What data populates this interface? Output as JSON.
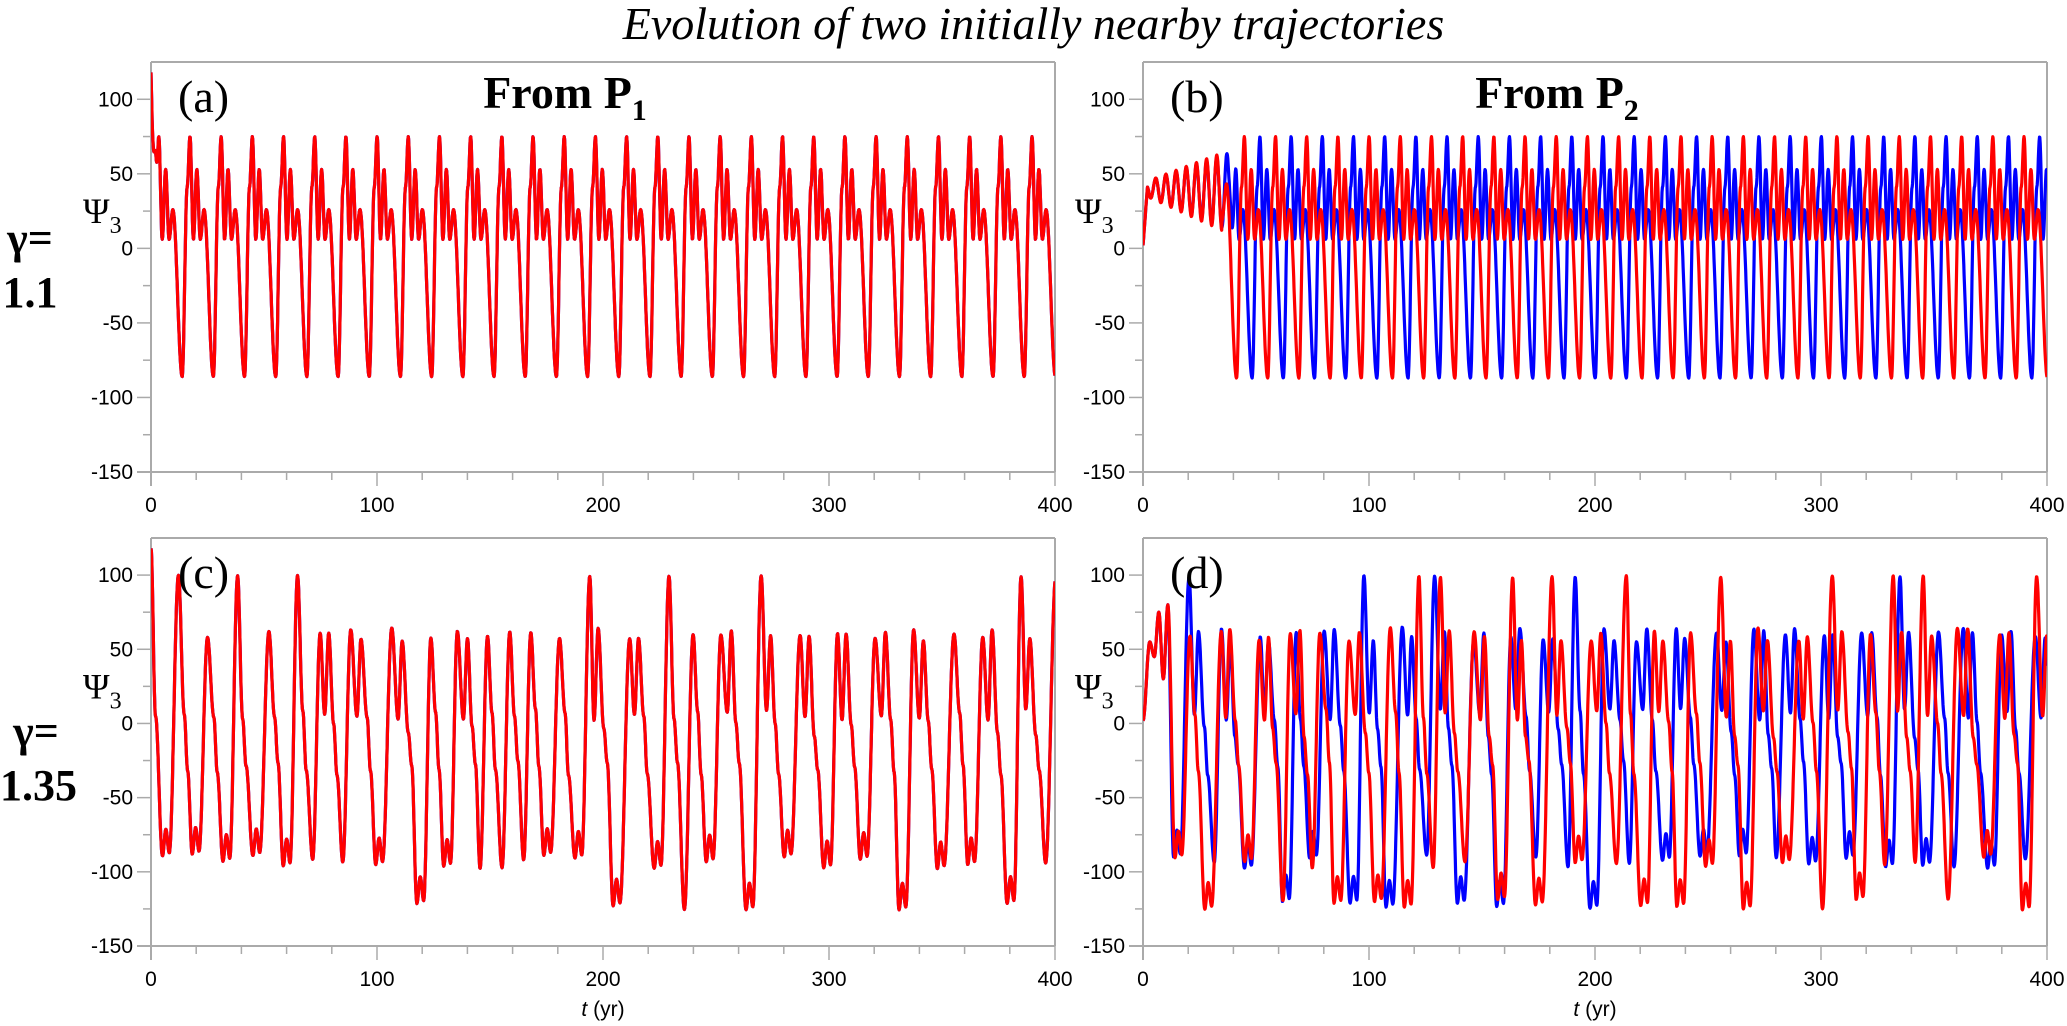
{
  "figure": {
    "title": "Evolution of two initially nearby trajectories",
    "row_labels": [
      {
        "line1": "γ=",
        "line2": "1.1"
      },
      {
        "line1": "γ=",
        "line2": "1.35"
      }
    ],
    "column_headers": [
      {
        "text": "From P",
        "sub": "1"
      },
      {
        "text": "From P",
        "sub": "2"
      }
    ],
    "colors": {
      "trajectory_1": "#0000ff",
      "trajectory_2": "#ff0000",
      "axis": "#aaaaaa"
    }
  },
  "chart_data": [
    {
      "type": "line",
      "panel": "(a)",
      "header": "From P1",
      "gamma": "1.1",
      "ylabel": "Ψ3",
      "xlabel": "",
      "xlim": [
        0,
        400
      ],
      "ylim": [
        -150,
        125
      ],
      "xticks": [
        0,
        100,
        200,
        300,
        400
      ],
      "yticks": [
        100,
        50,
        0,
        -50,
        -100,
        -150
      ],
      "description": "Two trajectories overlap exactly (red over blue); periodic oscillation with period ~13.5 yr: large peak ~75, small peak ~53, shallow troughs ~5, deep troughs ~-86; initial value ~118",
      "series": [
        {
          "name": "trajectory 1",
          "color": "#0000ff",
          "regime": "periodic",
          "start": 118,
          "period": 13.8,
          "peak_high": 75,
          "peak_low": 53,
          "trough_shallow": 6,
          "trough_deep": -86,
          "phase": 0
        },
        {
          "name": "trajectory 2",
          "color": "#ff0000",
          "regime": "periodic",
          "start": 118,
          "period": 13.8,
          "peak_high": 75,
          "peak_low": 53,
          "trough_shallow": 6,
          "trough_deep": -86,
          "phase": 0
        }
      ]
    },
    {
      "type": "line",
      "panel": "(b)",
      "header": "From P2",
      "gamma": "1.1",
      "ylabel": "Ψ3",
      "xlabel": "",
      "xlim": [
        0,
        400
      ],
      "ylim": [
        -150,
        125
      ],
      "xticks": [
        0,
        100,
        200,
        300,
        400
      ],
      "yticks": [
        100,
        50,
        0,
        -50,
        -100,
        -150
      ],
      "description": "Both start near 0, grow as small spiralling oscillations (40-70) until t~35 yr, then settle on the same periodic cycle but with a phase offset (blue vs red interleaved)",
      "series": [
        {
          "name": "trajectory 1",
          "color": "#0000ff",
          "regime": "transient-then-periodic",
          "start": 2,
          "transient_end": 38,
          "period": 13.8,
          "peak_high": 75,
          "peak_low": 53,
          "trough_shallow": 6,
          "trough_deep": -87,
          "phase": 0.5
        },
        {
          "name": "trajectory 2",
          "color": "#ff0000",
          "regime": "transient-then-periodic",
          "start": 2,
          "transient_end": 35,
          "period": 13.8,
          "peak_high": 75,
          "peak_low": 53,
          "trough_shallow": 6,
          "trough_deep": -87,
          "phase": 0
        }
      ]
    },
    {
      "type": "line",
      "panel": "(c)",
      "header": "",
      "gamma": "1.35",
      "ylabel": "Ψ3",
      "xlabel": "t (yr)",
      "xlim": [
        0,
        400
      ],
      "ylim": [
        -150,
        125
      ],
      "xticks": [
        0,
        100,
        200,
        300,
        400
      ],
      "yticks": [
        100,
        50,
        0,
        -50,
        -100,
        -150
      ],
      "description": "Trajectories overlap; irregular (chaotic-looking) oscillation with peaks up to ~100, minima down to ~-125",
      "series": [
        {
          "name": "trajectory 1",
          "color": "#0000ff",
          "regime": "chaotic",
          "start": 118,
          "max": 100,
          "min": -126,
          "seed": 1
        },
        {
          "name": "trajectory 2",
          "color": "#ff0000",
          "regime": "chaotic",
          "start": 118,
          "max": 100,
          "min": -126,
          "seed": 1
        }
      ]
    },
    {
      "type": "line",
      "panel": "(d)",
      "header": "",
      "gamma": "1.35",
      "ylabel": "Ψ3",
      "xlabel": "t (yr)",
      "xlim": [
        0,
        400
      ],
      "ylim": [
        -150,
        125
      ],
      "xticks": [
        0,
        100,
        200,
        300,
        400
      ],
      "yticks": [
        100,
        50,
        0,
        -50,
        -100,
        -150
      ],
      "description": "Both start near 0, diverge after ~20 yr, then evolve independently with irregular oscillations between ~-126 and ~100",
      "series": [
        {
          "name": "trajectory 1",
          "color": "#0000ff",
          "regime": "chaotic",
          "start": 2,
          "max": 100,
          "min": -126,
          "seed": 2
        },
        {
          "name": "trajectory 2",
          "color": "#ff0000",
          "regime": "chaotic",
          "start": 2,
          "max": 100,
          "min": -126,
          "seed": 3
        }
      ]
    }
  ]
}
